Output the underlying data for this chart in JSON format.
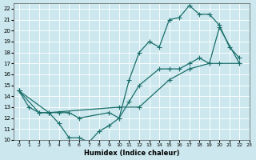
{
  "xlabel": "Humidex (Indice chaleur)",
  "bg_color": "#cce8ee",
  "line_color": "#1a6e6a",
  "xlim": [
    -0.5,
    23
  ],
  "ylim": [
    10,
    22.5
  ],
  "xticks": [
    0,
    1,
    2,
    3,
    4,
    5,
    6,
    7,
    8,
    9,
    10,
    11,
    12,
    13,
    14,
    15,
    16,
    17,
    18,
    19,
    20,
    21,
    22,
    23
  ],
  "yticks": [
    10,
    11,
    12,
    13,
    14,
    15,
    16,
    17,
    18,
    19,
    20,
    21,
    22
  ],
  "curve1_x": [
    0,
    1,
    2,
    3,
    4,
    5,
    6,
    7,
    8,
    9,
    10,
    11,
    12,
    13,
    14,
    15,
    16,
    17,
    18,
    19,
    20,
    21,
    22
  ],
  "curve1_y": [
    14.5,
    13.0,
    12.5,
    12.5,
    11.5,
    10.2,
    10.2,
    9.8,
    10.8,
    11.3,
    12.0,
    15.5,
    18.0,
    19.0,
    18.5,
    21.0,
    21.2,
    22.3,
    21.5,
    21.5,
    20.5,
    18.5,
    17.5
  ],
  "curve2_x": [
    0,
    3,
    10,
    12,
    15,
    17,
    19,
    20,
    22
  ],
  "curve2_y": [
    14.5,
    12.5,
    13.0,
    13.0,
    15.5,
    16.5,
    17.0,
    17.0,
    17.0
  ],
  "curve3_x": [
    0,
    2,
    3,
    4,
    5,
    6,
    9,
    10,
    11,
    12,
    14,
    15,
    16,
    17,
    18,
    19,
    20,
    22
  ],
  "curve3_y": [
    14.5,
    12.5,
    12.5,
    12.5,
    12.5,
    12.0,
    12.5,
    12.0,
    13.5,
    15.0,
    16.5,
    16.5,
    16.5,
    17.0,
    17.5,
    17.0,
    20.3,
    17.0
  ]
}
